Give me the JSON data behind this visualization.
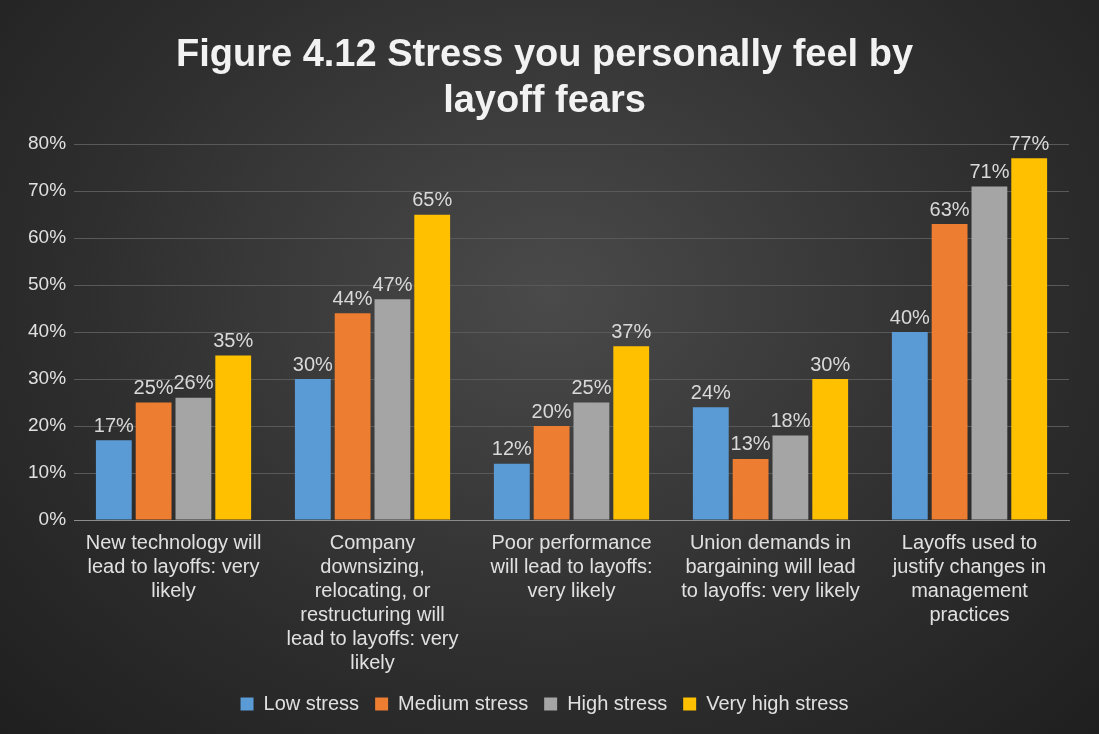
{
  "chart_data": {
    "type": "bar",
    "title": "Figure 4.12 Stress you personally feel by layoff fears",
    "categories": [
      "New technology will lead to layoffs: very likely",
      "Company downsizing, relocating, or restructuring will lead to layoffs: very likely",
      "Poor performance will lead to layoffs: very likely",
      "Union demands in bargaining will lead to layoffs: very likely",
      "Layoffs used to justify changes in management practices"
    ],
    "series": [
      {
        "name": "Low stress",
        "color": "#5b9bd5",
        "values": [
          17,
          30,
          12,
          24,
          40
        ],
        "value_labels": [
          "17%",
          "30%",
          "12%",
          "24%",
          "40%"
        ]
      },
      {
        "name": "Medium stress",
        "color": "#ed7d31",
        "values": [
          25,
          44,
          20,
          13,
          63
        ],
        "value_labels": [
          "25%",
          "44%",
          "20%",
          "13%",
          "63%"
        ]
      },
      {
        "name": "High stress",
        "color": "#a5a5a5",
        "values": [
          26,
          47,
          25,
          18,
          71
        ],
        "value_labels": [
          "26%",
          "47%",
          "25%",
          "18%",
          "71%"
        ]
      },
      {
        "name": "Very high stress",
        "color": "#ffc000",
        "values": [
          35,
          65,
          37,
          30,
          77
        ],
        "value_labels": [
          "35%",
          "65%",
          "37%",
          "30%",
          "77%"
        ]
      }
    ],
    "ylim": [
      0,
      80
    ],
    "yticks": [
      {
        "value": 0,
        "label": "0%"
      },
      {
        "value": 10,
        "label": "10%"
      },
      {
        "value": 20,
        "label": "20%"
      },
      {
        "value": 30,
        "label": "30%"
      },
      {
        "value": 40,
        "label": "40%"
      },
      {
        "value": 50,
        "label": "50%"
      },
      {
        "value": 60,
        "label": "60%"
      },
      {
        "value": 70,
        "label": "70%"
      },
      {
        "value": 80,
        "label": "80%"
      }
    ],
    "grid": "y",
    "legend": "bottom"
  }
}
